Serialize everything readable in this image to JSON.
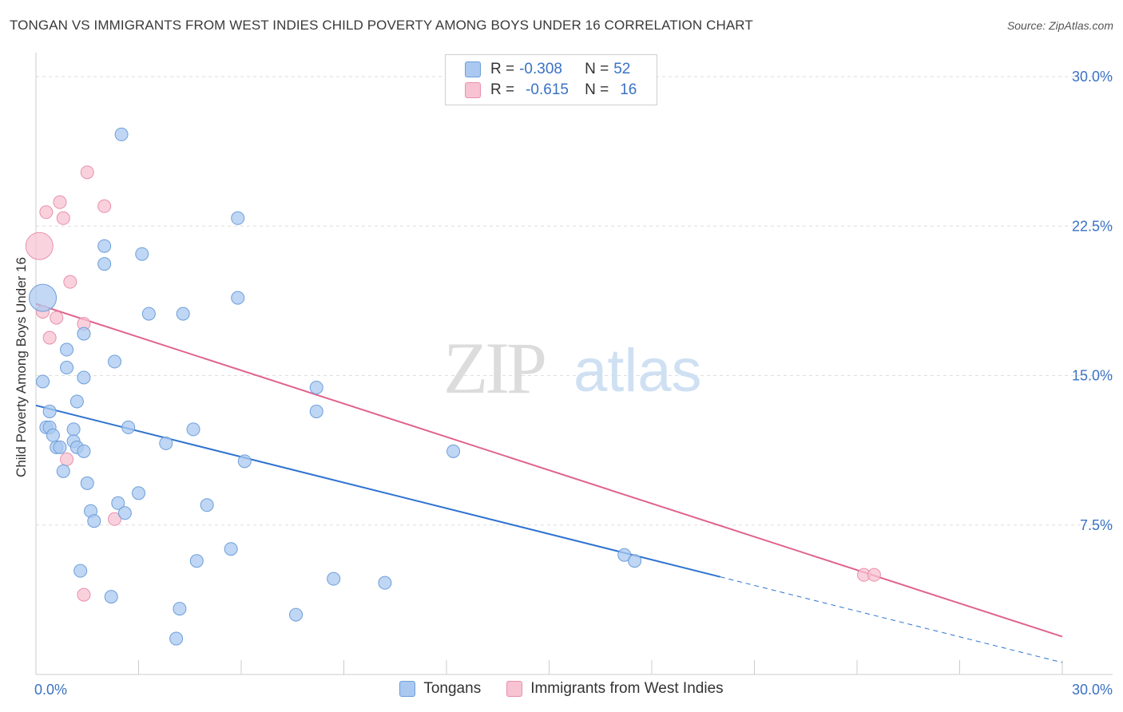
{
  "title": "TONGAN VS IMMIGRANTS FROM WEST INDIES CHILD POVERTY AMONG BOYS UNDER 16 CORRELATION CHART",
  "source": "Source: ZipAtlas.com",
  "watermark": {
    "zip": "ZIP",
    "atlas": "atlas"
  },
  "legend": {
    "rows": [
      {
        "r_label": "R =",
        "r_value": "-0.308",
        "n_label": "N =",
        "n_value": "52"
      },
      {
        "r_label": "R =",
        "r_value": "-0.615",
        "n_label": "N =",
        "n_value": "16"
      }
    ]
  },
  "bottom_legend": {
    "series1": "Tongans",
    "series2": "Immigrants from West Indies"
  },
  "colors": {
    "blue_fill": "#aac8f0",
    "blue_stroke": "#6d9fd9",
    "blue_line": "#2e73cf",
    "pink_fill": "#f7c2d2",
    "pink_stroke": "#e990ad",
    "pink_line": "#e0638e",
    "axis_text": "#3a72c4"
  },
  "chart_data": {
    "type": "scatter",
    "title": "TONGAN VS IMMIGRANTS FROM WEST INDIES CHILD POVERTY AMONG BOYS UNDER 16 CORRELATION CHART",
    "xlabel": "",
    "ylabel": "Child Poverty Among Boys Under 16",
    "xlim": [
      0,
      30
    ],
    "ylim": [
      0,
      30
    ],
    "x_tick_labels": [
      "0.0%",
      "30.0%"
    ],
    "y_ticks": [
      {
        "value": 7.5,
        "label": "7.5%"
      },
      {
        "value": 15,
        "label": "15.0%"
      },
      {
        "value": 22.5,
        "label": "22.5%"
      },
      {
        "value": 30,
        "label": "30.0%"
      }
    ],
    "series": [
      {
        "name": "Tongans",
        "r": -0.308,
        "n": 52,
        "trend": {
          "x0": 0,
          "y0": 13.5,
          "x1": 30,
          "y1": 0.6,
          "solid_until_x": 20
        },
        "points": [
          {
            "x": 0.2,
            "y": 18.9,
            "big": true
          },
          {
            "x": 0.2,
            "y": 14.7
          },
          {
            "x": 0.3,
            "y": 12.4
          },
          {
            "x": 0.4,
            "y": 12.4
          },
          {
            "x": 0.4,
            "y": 13.2
          },
          {
            "x": 0.5,
            "y": 12.0
          },
          {
            "x": 0.6,
            "y": 11.4
          },
          {
            "x": 0.7,
            "y": 11.4
          },
          {
            "x": 0.8,
            "y": 10.2
          },
          {
            "x": 0.9,
            "y": 16.3
          },
          {
            "x": 0.9,
            "y": 15.4
          },
          {
            "x": 1.1,
            "y": 12.3
          },
          {
            "x": 1.1,
            "y": 11.7
          },
          {
            "x": 1.2,
            "y": 11.4
          },
          {
            "x": 1.2,
            "y": 13.7
          },
          {
            "x": 1.4,
            "y": 11.2
          },
          {
            "x": 1.4,
            "y": 14.9
          },
          {
            "x": 1.4,
            "y": 17.1
          },
          {
            "x": 1.5,
            "y": 9.6
          },
          {
            "x": 1.6,
            "y": 8.2
          },
          {
            "x": 1.7,
            "y": 7.7
          },
          {
            "x": 1.3,
            "y": 5.2
          },
          {
            "x": 2.2,
            "y": 3.9
          },
          {
            "x": 2.3,
            "y": 15.7
          },
          {
            "x": 2.4,
            "y": 8.6
          },
          {
            "x": 2.5,
            "y": 27.1
          },
          {
            "x": 2.6,
            "y": 8.1
          },
          {
            "x": 2.0,
            "y": 21.5
          },
          {
            "x": 2.0,
            "y": 20.6
          },
          {
            "x": 2.7,
            "y": 12.4
          },
          {
            "x": 3.0,
            "y": 9.1
          },
          {
            "x": 3.1,
            "y": 21.1
          },
          {
            "x": 3.3,
            "y": 18.1
          },
          {
            "x": 3.8,
            "y": 11.6
          },
          {
            "x": 4.1,
            "y": 1.8
          },
          {
            "x": 4.2,
            "y": 3.3
          },
          {
            "x": 4.3,
            "y": 18.1
          },
          {
            "x": 4.6,
            "y": 12.3
          },
          {
            "x": 4.7,
            "y": 5.7
          },
          {
            "x": 5.0,
            "y": 8.5
          },
          {
            "x": 5.7,
            "y": 6.3
          },
          {
            "x": 5.9,
            "y": 22.9
          },
          {
            "x": 5.9,
            "y": 18.9
          },
          {
            "x": 6.1,
            "y": 10.7
          },
          {
            "x": 7.6,
            "y": 3.0
          },
          {
            "x": 8.2,
            "y": 14.4
          },
          {
            "x": 8.2,
            "y": 13.2
          },
          {
            "x": 8.7,
            "y": 4.8
          },
          {
            "x": 10.2,
            "y": 4.6
          },
          {
            "x": 12.2,
            "y": 11.2
          },
          {
            "x": 17.2,
            "y": 6.0
          },
          {
            "x": 17.5,
            "y": 5.7
          }
        ]
      },
      {
        "name": "Immigrants from West Indies",
        "r": -0.615,
        "n": 16,
        "trend": {
          "x0": 0,
          "y0": 18.6,
          "x1": 30,
          "y1": 1.9
        },
        "points": [
          {
            "x": 0.1,
            "y": 21.5,
            "big": true
          },
          {
            "x": 0.2,
            "y": 18.2
          },
          {
            "x": 0.3,
            "y": 23.2
          },
          {
            "x": 0.4,
            "y": 16.9
          },
          {
            "x": 0.6,
            "y": 17.9
          },
          {
            "x": 0.7,
            "y": 23.7
          },
          {
            "x": 0.8,
            "y": 22.9
          },
          {
            "x": 0.9,
            "y": 10.8
          },
          {
            "x": 1.0,
            "y": 19.7
          },
          {
            "x": 1.4,
            "y": 17.6
          },
          {
            "x": 1.4,
            "y": 4.0
          },
          {
            "x": 1.5,
            "y": 25.2
          },
          {
            "x": 2.0,
            "y": 23.5
          },
          {
            "x": 2.3,
            "y": 7.8
          },
          {
            "x": 24.2,
            "y": 5.0
          },
          {
            "x": 24.5,
            "y": 5.0
          }
        ]
      }
    ]
  }
}
